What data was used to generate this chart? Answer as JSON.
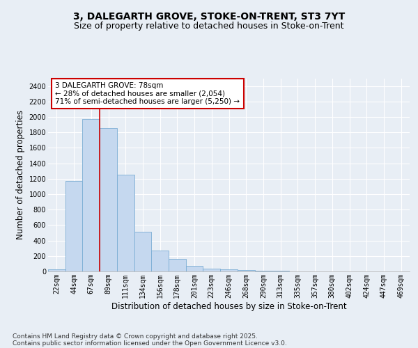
{
  "title_line1": "3, DALEGARTH GROVE, STOKE-ON-TRENT, ST3 7YT",
  "title_line2": "Size of property relative to detached houses in Stoke-on-Trent",
  "xlabel": "Distribution of detached houses by size in Stoke-on-Trent",
  "ylabel": "Number of detached properties",
  "categories": [
    "22sqm",
    "44sqm",
    "67sqm",
    "89sqm",
    "111sqm",
    "134sqm",
    "156sqm",
    "178sqm",
    "201sqm",
    "223sqm",
    "246sqm",
    "268sqm",
    "290sqm",
    "313sqm",
    "335sqm",
    "357sqm",
    "380sqm",
    "402sqm",
    "424sqm",
    "447sqm",
    "469sqm"
  ],
  "values": [
    30,
    1170,
    1970,
    1860,
    1250,
    510,
    270,
    160,
    75,
    35,
    25,
    20,
    10,
    5,
    3,
    2,
    1,
    1,
    0,
    0,
    0
  ],
  "bar_color": "#c5d8ef",
  "bar_edge_color": "#7aadd4",
  "red_line_x": 2.5,
  "annotation_text": "3 DALEGARTH GROVE: 78sqm\n← 28% of detached houses are smaller (2,054)\n71% of semi-detached houses are larger (5,250) →",
  "annotation_box_color": "#ffffff",
  "annotation_box_edge": "#cc0000",
  "ylim": [
    0,
    2500
  ],
  "yticks": [
    0,
    200,
    400,
    600,
    800,
    1000,
    1200,
    1400,
    1600,
    1800,
    2000,
    2200,
    2400
  ],
  "footer_line1": "Contains HM Land Registry data © Crown copyright and database right 2025.",
  "footer_line2": "Contains public sector information licensed under the Open Government Licence v3.0.",
  "background_color": "#e8eef5",
  "plot_bg_color": "#e8eef5",
  "grid_color": "#ffffff",
  "title_fontsize": 10,
  "subtitle_fontsize": 9,
  "axis_label_fontsize": 8.5,
  "tick_fontsize": 7,
  "footer_fontsize": 6.5,
  "annotation_fontsize": 7.5
}
